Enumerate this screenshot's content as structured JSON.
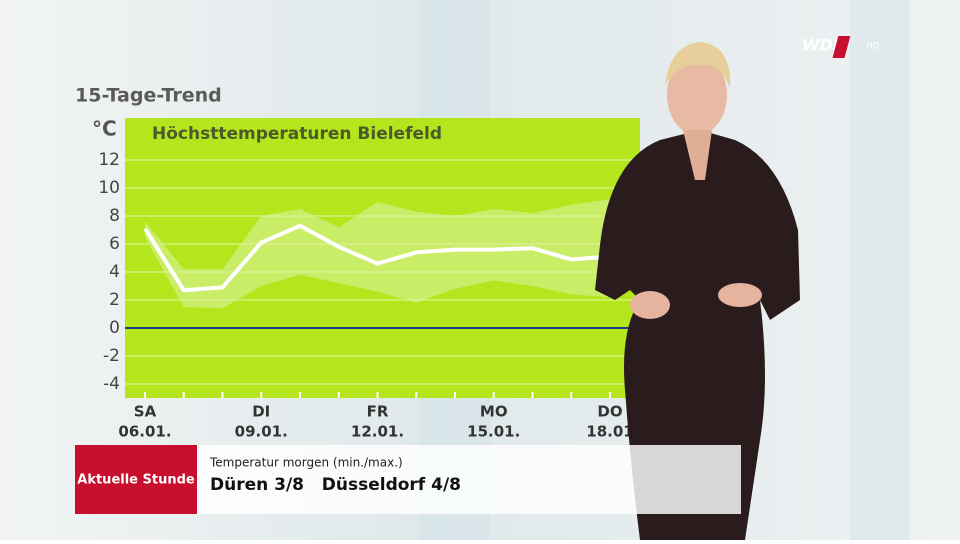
{
  "header": {
    "title": "15-Tage-Trend",
    "logo": "WDR",
    "logo_suffix": "HD"
  },
  "chart_data": {
    "type": "line",
    "title": "Höchsttemperaturen Bielefeld",
    "y_label": "°C",
    "categories": [
      "06.01.",
      null,
      null,
      "09.01.",
      null,
      null,
      "12.01.",
      null,
      null,
      "15.01.",
      null,
      null,
      "18.01"
    ],
    "weekdays": [
      "SA",
      null,
      null,
      "DI",
      null,
      null,
      "FR",
      null,
      null,
      "MO",
      null,
      null,
      "DO"
    ],
    "series": [
      {
        "color": "#ffffff",
        "values": [
          7.1,
          2.7,
          2.9,
          6.1,
          7.3,
          5.8,
          4.6,
          5.4,
          5.6,
          5.6,
          5.7,
          4.9,
          5.1
        ]
      }
    ],
    "range": {
      "color": "#d9f29a",
      "upper": [
        7.6,
        4.2,
        4.2,
        8.0,
        8.5,
        7.2,
        9.0,
        8.3,
        8.0,
        8.5,
        8.2,
        8.8,
        9.2
      ],
      "lower": [
        6.5,
        1.5,
        1.4,
        3.0,
        3.8,
        3.2,
        2.6,
        1.8,
        2.8,
        3.4,
        3.0,
        2.4,
        2.2
      ]
    },
    "ylim": [
      -5,
      15
    ],
    "yticks": [
      -4,
      -2,
      0,
      2,
      4,
      6,
      8,
      10,
      12
    ],
    "grid": true,
    "zero_line_color": "#1f3c8c",
    "background": "#b5e61d"
  },
  "ticker": {
    "brand": "Aktuelle Stunde",
    "subtitle": "Temperatur morgen (min./max.)",
    "text": "Düren 3/8   Düsseldorf 4/8"
  }
}
